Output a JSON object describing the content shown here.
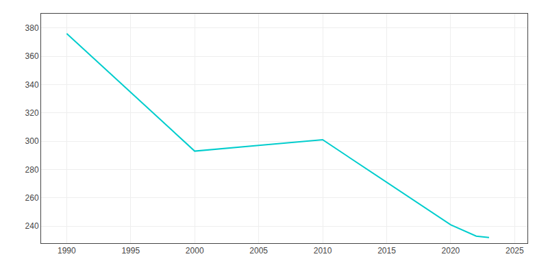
{
  "chart_data": {
    "type": "line",
    "x": [
      1990,
      2000,
      2005,
      2010,
      2020,
      2022,
      2023
    ],
    "values": [
      376,
      293,
      297,
      301,
      241,
      233,
      232
    ],
    "color": "#00CDCD",
    "xlim": [
      1988,
      2026
    ],
    "ylim": [
      228,
      390
    ],
    "xticks": [
      1990,
      1995,
      2000,
      2005,
      2010,
      2015,
      2020,
      2025
    ],
    "yticks": [
      240,
      260,
      280,
      300,
      320,
      340,
      360,
      380
    ],
    "grid": true
  }
}
